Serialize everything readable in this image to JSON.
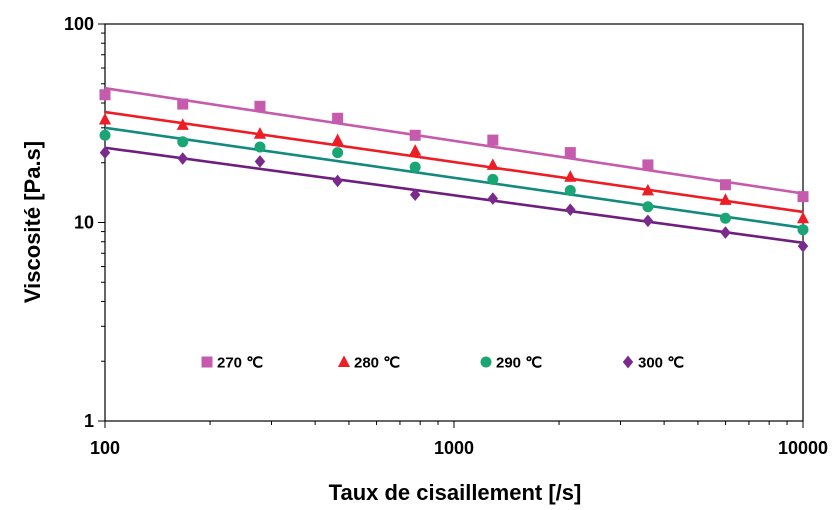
{
  "chart_data": {
    "type": "scatter",
    "xlabel": "Taux de cisaillement [/s]",
    "ylabel": "Viscosité [Pa.s]",
    "xscale": "log",
    "yscale": "log",
    "xlim": [
      100,
      10000
    ],
    "ylim": [
      1,
      100
    ],
    "x_ticks": [
      {
        "value": 100,
        "label": "100"
      },
      {
        "value": 1000,
        "label": "1000"
      },
      {
        "value": 10000,
        "label": "10000"
      }
    ],
    "y_ticks": [
      {
        "value": 1,
        "label": "1"
      },
      {
        "value": 10,
        "label": "10"
      },
      {
        "value": 100,
        "label": "100"
      }
    ],
    "grid": false,
    "legend_position": "inside-bottom",
    "x": [
      100,
      167,
      278,
      464,
      774,
      1292,
      2154,
      3594,
      5995,
      10000
    ],
    "series": [
      {
        "name": "270 ℃",
        "color": "#c65aac",
        "marker": "square",
        "values": [
          44,
          39.5,
          38.5,
          33.5,
          27.5,
          26,
          22.5,
          19.5,
          15.5,
          13.5
        ],
        "fit": [
          47.5,
          14.0
        ]
      },
      {
        "name": "280 ℃",
        "color": "#ee1c25",
        "marker": "triangle",
        "values": [
          33,
          31,
          28,
          26,
          23,
          19.5,
          17,
          14.5,
          13,
          10.5
        ],
        "fit": [
          36.0,
          11.3
        ]
      },
      {
        "name": "290 ℃",
        "color": "#1aa575",
        "marker": "circle",
        "values": [
          27.5,
          25.5,
          24,
          22.5,
          19,
          16.5,
          14.5,
          12,
          10.5,
          9.2
        ],
        "fit": [
          30.0,
          9.4
        ]
      },
      {
        "name": "300 ℃",
        "color": "#7a2a8c",
        "marker": "diamond",
        "values": [
          22.5,
          21,
          20.3,
          16.2,
          13.8,
          13.2,
          11.6,
          10.2,
          8.9,
          7.6
        ],
        "fit": [
          23.8,
          7.9
        ]
      }
    ],
    "fit_colors": [
      "#c65aac",
      "#ee1c25",
      "#138a80",
      "#6e1f7e"
    ]
  }
}
